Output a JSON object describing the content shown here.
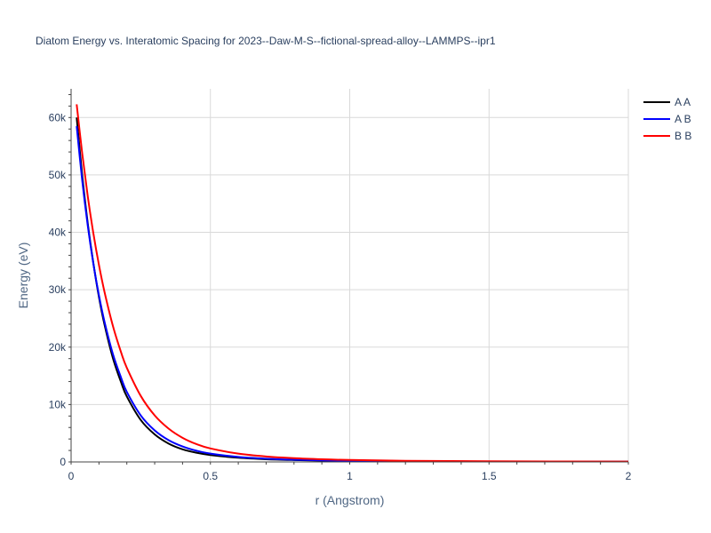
{
  "chart_data": {
    "type": "line",
    "title": "Diatom Energy vs. Interatomic Spacing for 2023--Daw-M-S--fictional-spread-alloy--LAMMPS--ipr1",
    "xlabel": "r (Angstrom)",
    "ylabel": "Energy (eV)",
    "xlim": [
      0,
      2
    ],
    "ylim": [
      0,
      65000
    ],
    "x_ticks": [
      {
        "value": 0,
        "label": "0"
      },
      {
        "value": 0.5,
        "label": "0.5"
      },
      {
        "value": 1,
        "label": "1"
      },
      {
        "value": 1.5,
        "label": "1.5"
      },
      {
        "value": 2,
        "label": "2"
      }
    ],
    "y_ticks": [
      {
        "value": 0,
        "label": "0"
      },
      {
        "value": 10000,
        "label": "10k"
      },
      {
        "value": 20000,
        "label": "20k"
      },
      {
        "value": 30000,
        "label": "30k"
      },
      {
        "value": 40000,
        "label": "40k"
      },
      {
        "value": 50000,
        "label": "50k"
      },
      {
        "value": 60000,
        "label": "60k"
      }
    ],
    "grid": true,
    "legend_position": "top-right",
    "series": [
      {
        "name": "A A",
        "color": "#000000",
        "x": [
          0.02,
          0.04,
          0.06,
          0.08,
          0.1,
          0.12,
          0.15,
          0.18,
          0.2,
          0.25,
          0.3,
          0.35,
          0.4,
          0.45,
          0.5,
          0.6,
          0.7,
          0.8,
          0.9,
          1.0,
          1.2,
          1.5,
          2.0
        ],
        "y": [
          60000,
          49900,
          41500,
          34600,
          28700,
          23900,
          18100,
          13800,
          11400,
          7300,
          4800,
          3200,
          2200,
          1600,
          1200,
          730,
          470,
          330,
          240,
          180,
          110,
          60,
          30
        ]
      },
      {
        "name": "A B",
        "color": "#0000ff",
        "x": [
          0.02,
          0.04,
          0.06,
          0.08,
          0.1,
          0.12,
          0.15,
          0.18,
          0.2,
          0.25,
          0.3,
          0.35,
          0.4,
          0.45,
          0.5,
          0.6,
          0.7,
          0.8,
          0.9,
          1.0,
          1.2,
          1.5,
          2.0
        ],
        "y": [
          58500,
          49000,
          41100,
          34500,
          29000,
          24400,
          18800,
          14600,
          12200,
          8100,
          5500,
          3800,
          2700,
          1950,
          1450,
          870,
          560,
          380,
          270,
          200,
          120,
          65,
          30
        ]
      },
      {
        "name": "B B",
        "color": "#ff0000",
        "x": [
          0.02,
          0.04,
          0.06,
          0.08,
          0.1,
          0.12,
          0.15,
          0.18,
          0.2,
          0.25,
          0.3,
          0.35,
          0.4,
          0.45,
          0.5,
          0.6,
          0.7,
          0.8,
          0.9,
          1.0,
          1.2,
          1.5,
          2.0
        ],
        "y": [
          62300,
          53700,
          46200,
          39800,
          34300,
          29600,
          23700,
          19000,
          16400,
          11500,
          8100,
          5800,
          4200,
          3100,
          2350,
          1450,
          950,
          650,
          460,
          340,
          200,
          110,
          50
        ]
      }
    ]
  }
}
